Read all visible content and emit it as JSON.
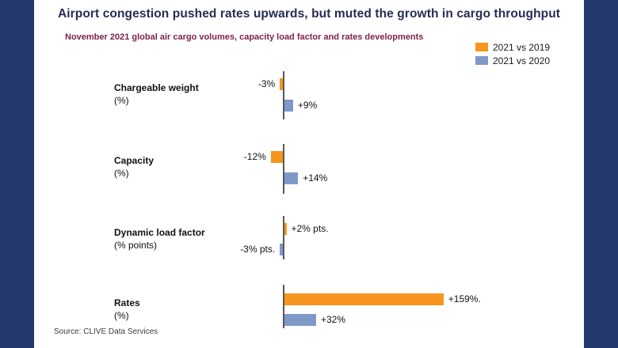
{
  "frame": {
    "side_panel_color": "#24396B",
    "background": "#ffffff"
  },
  "header": {
    "title": "Airport congestion pushed rates upwards, but muted the growth in cargo throughput",
    "subtitle": "November 2021 global air cargo volumes, capacity load factor and rates developments"
  },
  "legend": [
    {
      "label": "2021 vs 2019",
      "color": "#F7941D"
    },
    {
      "label": "2021 vs 2020",
      "color": "#7E99C8"
    }
  ],
  "source": "Source: CLIVE Data Services",
  "chart_data": {
    "type": "bar",
    "orientation": "horizontal",
    "title": "November 2021 global air cargo volumes, capacity load factor and rates developments",
    "categories": [
      {
        "name": "Chargeable weight",
        "unit": "(%)"
      },
      {
        "name": "Capacity",
        "unit": "(%)"
      },
      {
        "name": "Dynamic load factor",
        "unit": "(% points)"
      },
      {
        "name": "Rates",
        "unit": "(%)"
      }
    ],
    "series": [
      {
        "name": "2021 vs 2019",
        "color": "#F7941D",
        "values": [
          -3,
          -12,
          2,
          159
        ],
        "labels": [
          "-3%",
          "-12%",
          "+2% pts.",
          "+159%."
        ]
      },
      {
        "name": "2021 vs 2020",
        "color": "#7E99C8",
        "values": [
          9,
          14,
          -3,
          32
        ],
        "labels": [
          "+9%",
          "+14%",
          "-3% pts.",
          "+32%"
        ]
      }
    ],
    "xlim": [
      -20,
      170
    ],
    "grid": false,
    "legend_position": "top-right",
    "axis_color": "#595959"
  }
}
